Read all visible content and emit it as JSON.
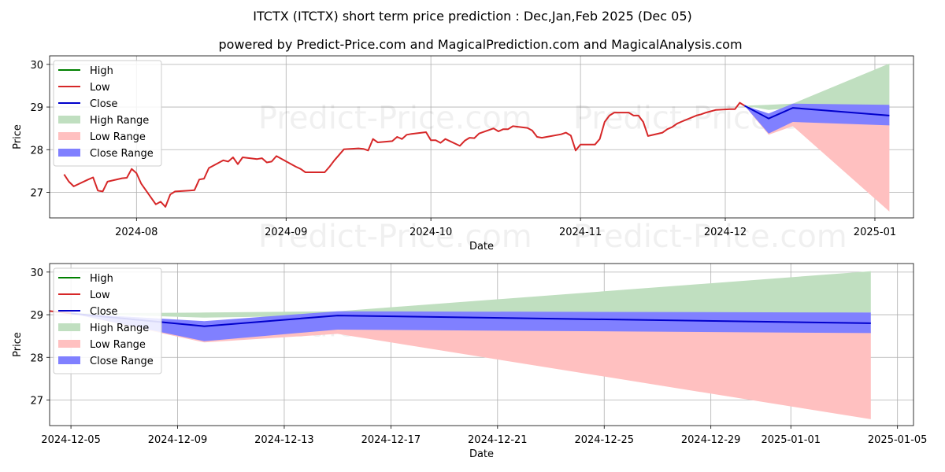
{
  "title": "ITCTX (ITCTX) short term price prediction : Dec,Jan,Feb 2025 (Dec 05)",
  "subtitle": "powered by Predict-Price.com and MagicalPrediction.com and MagicalAnalysis.com",
  "watermark": "Predict-Price.com",
  "colors": {
    "high": "#008000",
    "low": "#d62728",
    "close": "#0000cc",
    "high_range": "#c0dfc0",
    "low_range": "#ffc0c0",
    "close_range": "#8080ff",
    "grid": "#b0b0b0"
  },
  "chart_data": [
    {
      "type": "line",
      "xlabel": "Date",
      "ylabel": "Price",
      "grid": true,
      "legend": "upper left",
      "xlim": [
        "2024-07-14",
        "2025-01-09"
      ],
      "ylim": [
        26.4,
        30.2
      ],
      "x_ticks": [
        "2024-08",
        "2024-09",
        "2024-10",
        "2024-11",
        "2024-12",
        "2025-01"
      ],
      "x_tick_dates": [
        "2024-08-01",
        "2024-09-01",
        "2024-10-01",
        "2024-11-01",
        "2024-12-01",
        "2025-01-01"
      ],
      "y_ticks": [
        27,
        28,
        29,
        30
      ],
      "legend_entries": [
        "High",
        "Low",
        "Close",
        "High Range",
        "Low Range",
        "Close Range"
      ],
      "history": {
        "name": "Low",
        "x": [
          "2024-07-17",
          "2024-07-18",
          "2024-07-19",
          "2024-07-22",
          "2024-07-23",
          "2024-07-24",
          "2024-07-25",
          "2024-07-26",
          "2024-07-29",
          "2024-07-30",
          "2024-07-31",
          "2024-08-01",
          "2024-08-02",
          "2024-08-05",
          "2024-08-06",
          "2024-08-07",
          "2024-08-08",
          "2024-08-09",
          "2024-08-12",
          "2024-08-13",
          "2024-08-14",
          "2024-08-15",
          "2024-08-16",
          "2024-08-19",
          "2024-08-20",
          "2024-08-21",
          "2024-08-22",
          "2024-08-23",
          "2024-08-26",
          "2024-08-27",
          "2024-08-28",
          "2024-08-29",
          "2024-08-30",
          "2024-09-03",
          "2024-09-04",
          "2024-09-05",
          "2024-09-06",
          "2024-09-09",
          "2024-09-10",
          "2024-09-11",
          "2024-09-12",
          "2024-09-13",
          "2024-09-16",
          "2024-09-17",
          "2024-09-18",
          "2024-09-19",
          "2024-09-20",
          "2024-09-23",
          "2024-09-24",
          "2024-09-25",
          "2024-09-26",
          "2024-09-27",
          "2024-09-30",
          "2024-10-01",
          "2024-10-02",
          "2024-10-03",
          "2024-10-04",
          "2024-10-07",
          "2024-10-08",
          "2024-10-09",
          "2024-10-10",
          "2024-10-11",
          "2024-10-14",
          "2024-10-15",
          "2024-10-16",
          "2024-10-17",
          "2024-10-18",
          "2024-10-21",
          "2024-10-22",
          "2024-10-23",
          "2024-10-24",
          "2024-10-25",
          "2024-10-28",
          "2024-10-29",
          "2024-10-30",
          "2024-10-31",
          "2024-11-01",
          "2024-11-04",
          "2024-11-05",
          "2024-11-06",
          "2024-11-07",
          "2024-11-08",
          "2024-11-11",
          "2024-11-12",
          "2024-11-13",
          "2024-11-14",
          "2024-11-15",
          "2024-11-18",
          "2024-11-19",
          "2024-11-20",
          "2024-11-21",
          "2024-11-22",
          "2024-11-25",
          "2024-11-26",
          "2024-11-27",
          "2024-11-29",
          "2024-12-02",
          "2024-12-03",
          "2024-12-04",
          "2024-12-05"
        ],
        "values": [
          27.42,
          27.25,
          27.14,
          27.3,
          27.35,
          27.04,
          27.02,
          27.25,
          27.33,
          27.34,
          27.55,
          27.45,
          27.2,
          26.72,
          26.78,
          26.66,
          26.95,
          27.02,
          27.04,
          27.05,
          27.3,
          27.32,
          27.57,
          27.75,
          27.72,
          27.82,
          27.66,
          27.82,
          27.78,
          27.8,
          27.7,
          27.72,
          27.85,
          27.6,
          27.55,
          27.47,
          27.47,
          27.47,
          27.6,
          27.75,
          27.88,
          28.01,
          28.03,
          28.02,
          27.98,
          28.25,
          28.17,
          28.2,
          28.3,
          28.25,
          28.35,
          28.37,
          28.41,
          28.22,
          28.22,
          28.16,
          28.25,
          28.09,
          28.21,
          28.28,
          28.27,
          28.38,
          28.5,
          28.43,
          28.48,
          28.48,
          28.55,
          28.51,
          28.45,
          28.3,
          28.28,
          28.3,
          28.36,
          28.4,
          28.33,
          27.98,
          28.12,
          28.12,
          28.25,
          28.65,
          28.8,
          28.87,
          28.87,
          28.8,
          28.8,
          28.65,
          28.32,
          28.4,
          28.48,
          28.53,
          28.61,
          28.66,
          28.8,
          28.83,
          28.87,
          28.93,
          28.95,
          28.95,
          29.1,
          29.03
        ]
      },
      "forecast": {
        "x": [
          "2024-12-05",
          "2024-12-10",
          "2024-12-15",
          "2025-01-04"
        ],
        "close": [
          29.03,
          28.73,
          28.98,
          28.8
        ],
        "high_range_top": [
          29.03,
          29.05,
          29.08,
          30.02
        ],
        "high_range_bottom": [
          29.03,
          28.93,
          28.98,
          29.05
        ],
        "low_range_top": [
          29.03,
          28.55,
          28.7,
          28.6
        ],
        "low_range_bottom": [
          29.03,
          28.35,
          28.55,
          26.55
        ],
        "close_range_top": [
          29.03,
          28.85,
          29.08,
          29.05
        ],
        "close_range_bottom": [
          29.03,
          28.38,
          28.65,
          28.57
        ]
      }
    },
    {
      "type": "line",
      "xlabel": "Date",
      "ylabel": "Price",
      "grid": true,
      "legend": "upper left",
      "xlim": [
        "2024-12-04.2",
        "2025-01-05.6"
      ],
      "ylim": [
        26.4,
        30.2
      ],
      "x_ticks": [
        "2024-12-05",
        "2024-12-09",
        "2024-12-13",
        "2024-12-17",
        "2024-12-21",
        "2024-12-25",
        "2024-12-29",
        "2025-01-01",
        "2025-01-05"
      ],
      "y_ticks": [
        27,
        28,
        29,
        30
      ],
      "legend_entries": [
        "High",
        "Low",
        "Close",
        "High Range",
        "Low Range",
        "Close Range"
      ]
    }
  ]
}
